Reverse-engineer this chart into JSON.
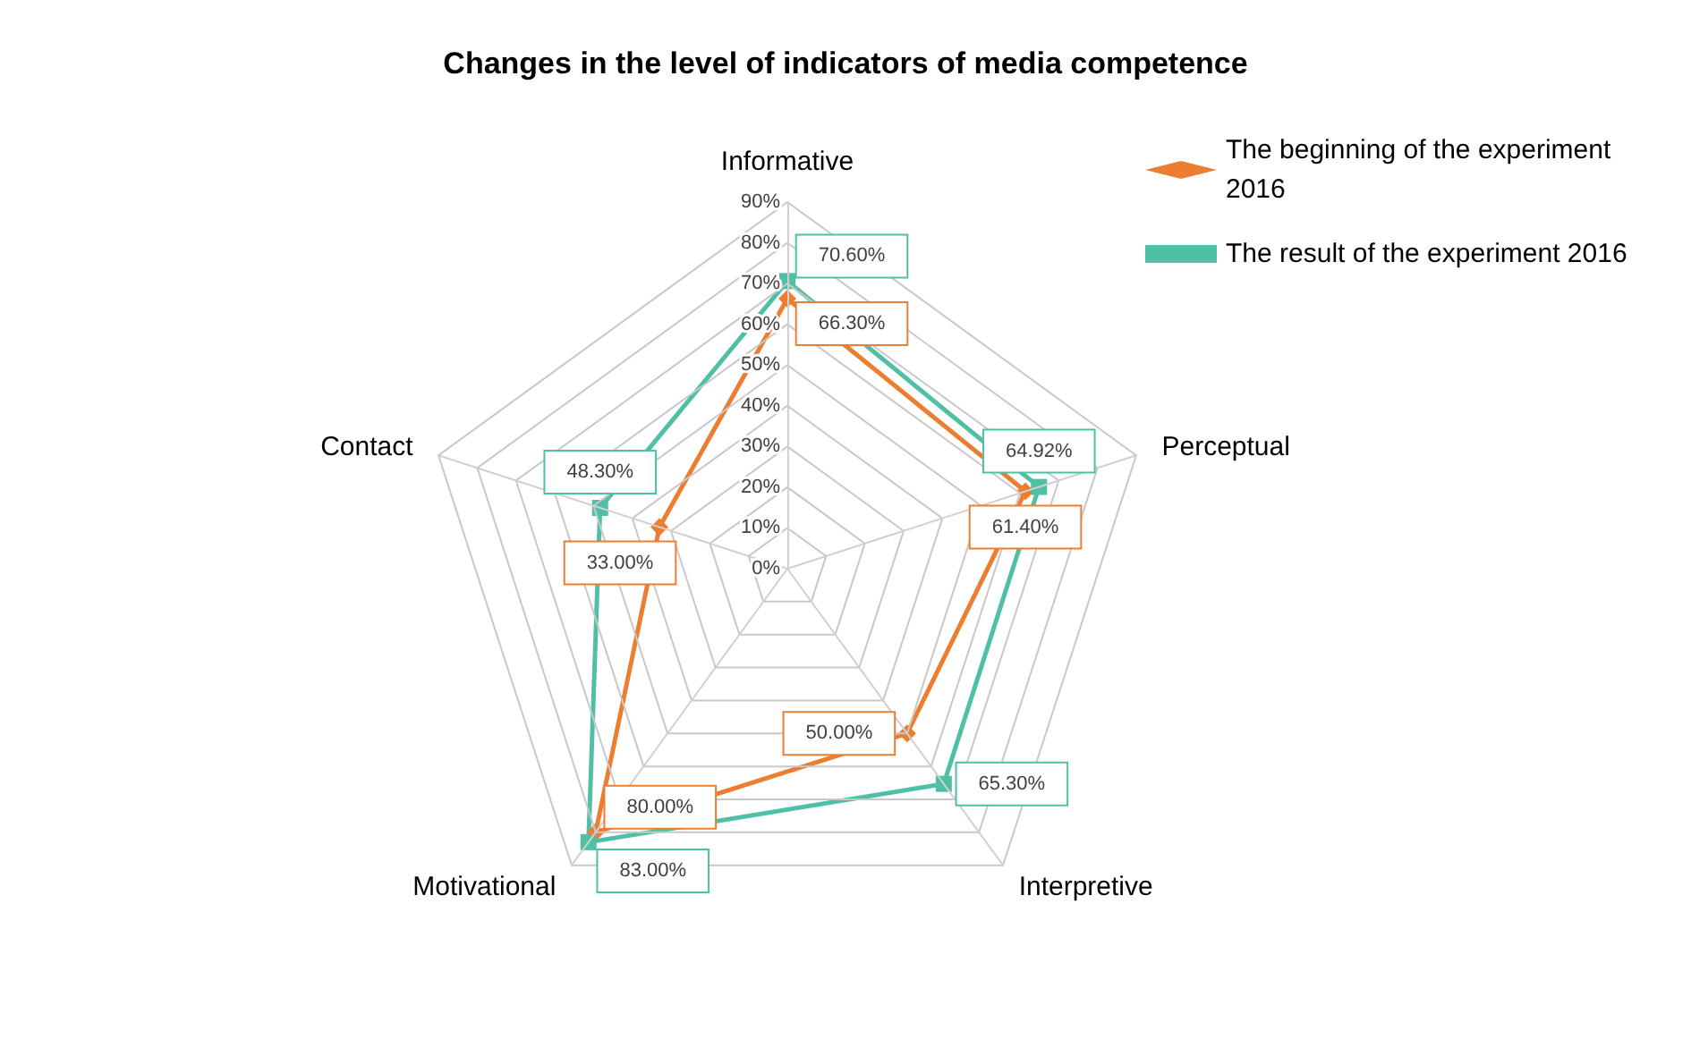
{
  "chart_data": {
    "type": "radar",
    "title": "Changes in the level of indicators of media competence",
    "categories": [
      "Informative",
      "Perceptual",
      "Interpretive",
      "Motivational",
      "Contact"
    ],
    "ylim": [
      0,
      90
    ],
    "yticks": [
      {
        "value": 0,
        "label": "0%"
      },
      {
        "value": 10,
        "label": "10%"
      },
      {
        "value": 20,
        "label": "20%"
      },
      {
        "value": 30,
        "label": "30%"
      },
      {
        "value": 40,
        "label": "40%"
      },
      {
        "value": 50,
        "label": "50%"
      },
      {
        "value": 60,
        "label": "60%"
      },
      {
        "value": 70,
        "label": "70%"
      },
      {
        "value": 80,
        "label": "80%"
      },
      {
        "value": 90,
        "label": "90%"
      }
    ],
    "series": [
      {
        "name": "The beginning of the experiment 2016",
        "color": "#ed7d31",
        "marker": "diamond",
        "values": [
          66.3,
          61.4,
          50,
          80,
          33
        ],
        "value_labels": [
          "66.30%",
          "61.40%",
          "50.00%",
          "80.00%",
          "33.00%"
        ]
      },
      {
        "name": "The result of the experiment 2016",
        "color": "#4fbfa5",
        "marker": "square",
        "values": [
          70.6,
          64.92,
          65.3,
          83,
          48.3
        ],
        "value_labels": [
          "70.60%",
          "64.92%",
          "65.30%",
          "83.00%",
          "48.30%"
        ]
      }
    ],
    "grid": true,
    "legend": "top right"
  }
}
